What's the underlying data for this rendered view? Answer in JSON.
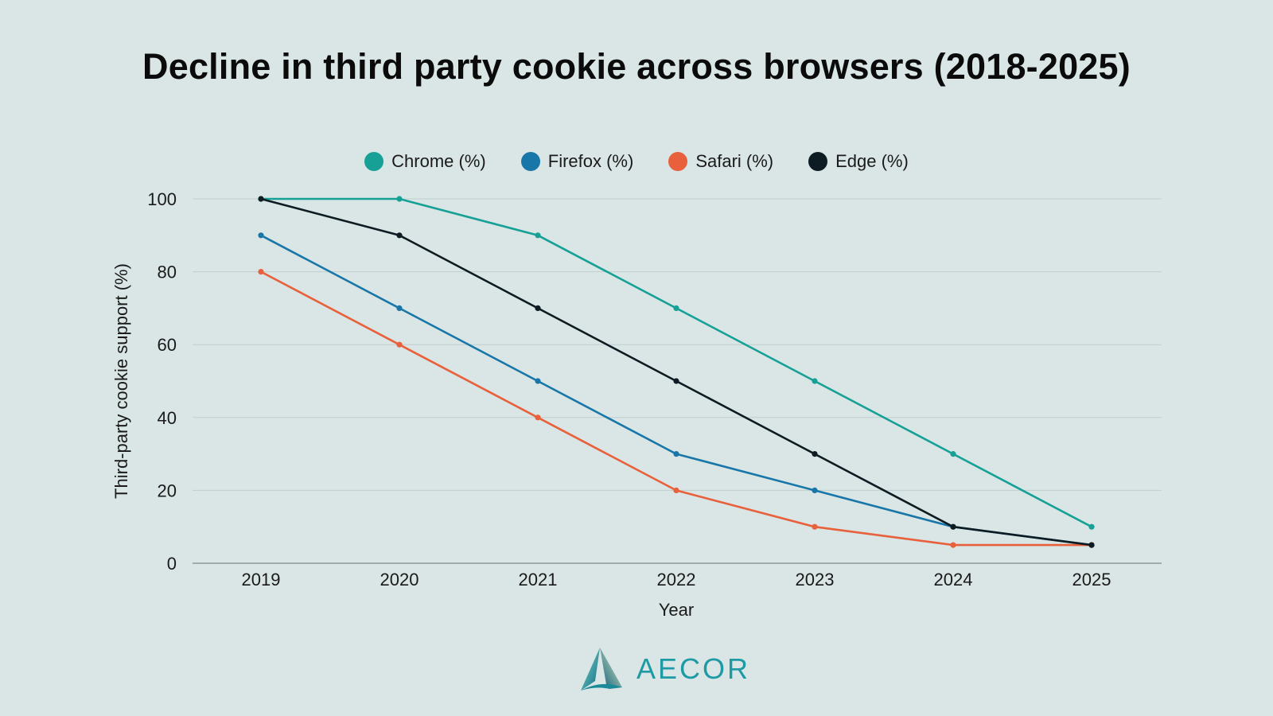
{
  "title": "Decline in third party cookie across browsers (2018-2025)",
  "logo": {
    "text": "AECOR",
    "icon": "triangle-logo-icon"
  },
  "colors": {
    "background": "#d9e6e5",
    "chrome": "#16a096",
    "firefox": "#1876a8",
    "safari": "#e8603c",
    "edge": "#0d1b22",
    "grid": "#bfcfce",
    "axis": "#8a9a9a"
  },
  "chart_data": {
    "type": "line",
    "title": "Decline in third party cookie across browsers (2018-2025)",
    "xlabel": "Year",
    "ylabel": "Third-party cookie support (%)",
    "x": [
      "2019",
      "2020",
      "2021",
      "2022",
      "2023",
      "2024",
      "2025"
    ],
    "ylim": [
      0,
      100
    ],
    "yticks": [
      "0",
      "20",
      "40",
      "60",
      "80",
      "100"
    ],
    "grid": true,
    "legend": "top-center",
    "series": [
      {
        "name": "Chrome (%)",
        "color": "#16a096",
        "values": [
          100,
          100,
          90,
          70,
          50,
          30,
          10
        ]
      },
      {
        "name": "Firefox (%)",
        "color": "#1876a8",
        "values": [
          90,
          70,
          50,
          30,
          20,
          10,
          5
        ]
      },
      {
        "name": "Safari (%)",
        "color": "#e8603c",
        "values": [
          80,
          60,
          40,
          20,
          10,
          5,
          5
        ]
      },
      {
        "name": "Edge (%)",
        "color": "#0d1b22",
        "values": [
          100,
          90,
          70,
          50,
          30,
          10,
          5
        ]
      }
    ]
  }
}
